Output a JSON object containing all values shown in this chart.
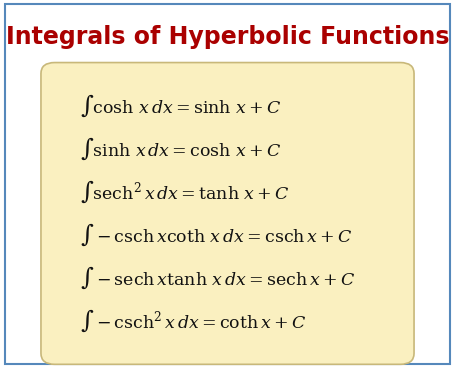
{
  "title": "Integrals of Hyperbolic Functions",
  "title_color": "#AA0000",
  "title_fontsize": 17,
  "bg_color": "#ffffff",
  "outer_border_color": "#5588bb",
  "box_color": "#FAF0C0",
  "box_edge_color": "#C8B87A",
  "formulas": [
    "$\\int \\cosh\\, x\\,dx = \\sinh\\, x + C$",
    "$\\int \\sinh\\, x\\,dx = \\cosh\\, x + C$",
    "$\\int \\mathrm{sech}^2\\, x\\,dx = \\tanh\\, x + C$",
    "$\\int -\\mathrm{csch}\\, x\\coth\\, x\\,dx = \\mathrm{csch}\\, x + C$",
    "$\\int -\\mathrm{sech}\\, x\\tanh\\, x\\,dx = \\mathrm{sech}\\, x + C$",
    "$\\int -\\mathrm{csch}^2\\, x\\,dx = \\mathrm{coth}\\, x + C$"
  ],
  "formula_fontsize": 12.5,
  "formula_color": "#111111",
  "fig_width": 4.55,
  "fig_height": 3.68,
  "dpi": 100
}
